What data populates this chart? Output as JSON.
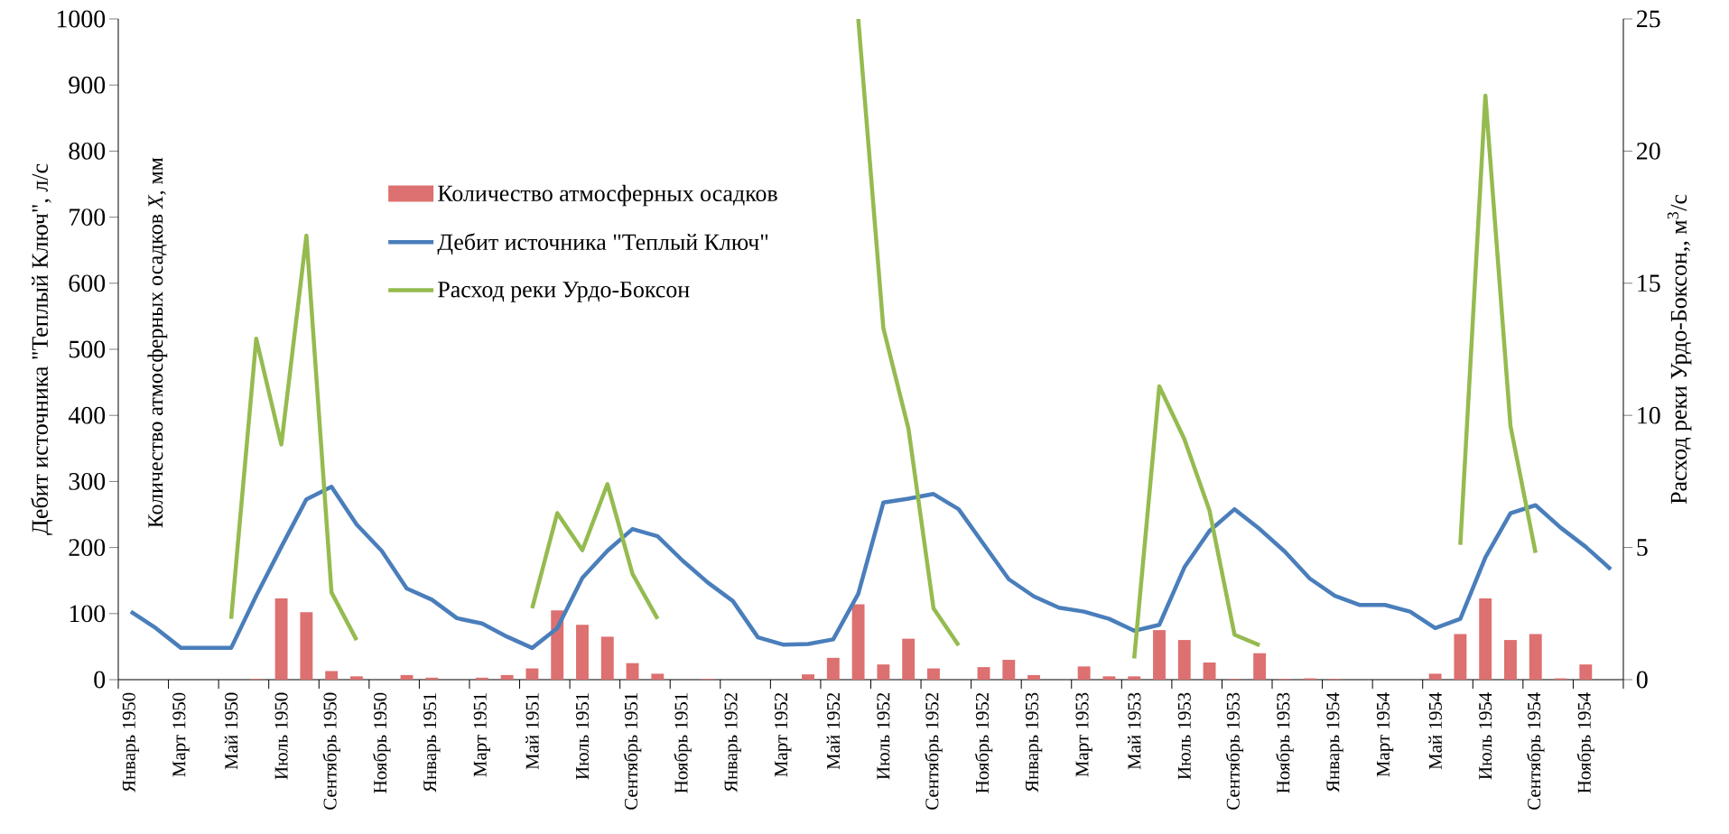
{
  "chart_data": {
    "type": "bar",
    "categories": [
      "Январь 1950",
      null,
      "Март 1950",
      null,
      "Май 1950",
      null,
      "Июль 1950",
      null,
      "Сентябрь 1950",
      null,
      "Ноябрь 1950",
      null,
      "Январь 1951",
      null,
      "Март 1951",
      null,
      "Май 1951",
      null,
      "Июль 1951",
      null,
      "Сентябрь 1951",
      null,
      "Ноябрь 1951",
      null,
      "Январь 1952",
      null,
      "Март 1952",
      null,
      "Май 1952",
      null,
      "Июль 1952",
      null,
      "Сентябрь 1952",
      null,
      "Ноябрь 1952",
      null,
      "Январь 1953",
      null,
      "Март 1953",
      null,
      "Май 1953",
      null,
      "Июль 1953",
      null,
      "Сентябрь 1953",
      null,
      "Ноябрь 1953",
      null,
      "Январь 1954",
      null,
      "Март 1954",
      null,
      "Май 1954",
      null,
      "Июль 1954",
      null,
      "Сентябрь 1954",
      null,
      "Ноябрь 1954",
      null
    ],
    "ylabel": "Дебит источника \"Теплый Ключ\", л/с",
    "y2label": "Расход реки Урдо-Боксон,, м$^{3}$/с",
    "annotations": [
      "Количество атмосферных осадков *X*, мм"
    ],
    "ylim": [
      0,
      1000
    ],
    "yticks": [
      0,
      100,
      200,
      300,
      400,
      500,
      600,
      700,
      800,
      900,
      1000
    ],
    "y2lim": [
      0,
      25
    ],
    "y2ticks": [
      0,
      5,
      10,
      15,
      20,
      25
    ],
    "legend": "top left",
    "marker": "none",
    "line_style": "solid",
    "series": [
      {
        "name": "Количество атмосферных осадков",
        "color": "#dd7070",
        "values": [
          0,
          0,
          0,
          0,
          0,
          1,
          123,
          102,
          13,
          5,
          0,
          7,
          3,
          0,
          3,
          7,
          17,
          105,
          83,
          65,
          25,
          9,
          0,
          1,
          0,
          0,
          0,
          8,
          33,
          114,
          23,
          62,
          17,
          0,
          19,
          30,
          7,
          0,
          20,
          5,
          5,
          75,
          60,
          26,
          1,
          40,
          1,
          2,
          1,
          0,
          0,
          0,
          9,
          69,
          123,
          60,
          69,
          2,
          23,
          0
        ]
      },
      {
        "name": "Дебит источника \"Теплый Ключ\"",
        "type": "line",
        "color": "#4a7ebb",
        "values": [
          103,
          78,
          48,
          48,
          48,
          127,
          201,
          273,
          292,
          235,
          195,
          138,
          121,
          93,
          85,
          65,
          48,
          78,
          154,
          195,
          228,
          217,
          180,
          147,
          119,
          64,
          53,
          54,
          61,
          130,
          268,
          274,
          281,
          258,
          205,
          152,
          126,
          109,
          103,
          92,
          74,
          83,
          170,
          225,
          258,
          228,
          194,
          153,
          127,
          113,
          113,
          103,
          78,
          92,
          185,
          252,
          264,
          230,
          201,
          167
        ]
      },
      {
        "name": "Расход реки Урдо-Боксон",
        "type": "line",
        "axis": "y2",
        "color": "#95bb50",
        "values": [
          null,
          null,
          null,
          null,
          2.3,
          12.9,
          8.9,
          16.8,
          3.3,
          1.5,
          null,
          null,
          null,
          null,
          null,
          null,
          2.7,
          6.3,
          4.9,
          7.4,
          4.0,
          2.3,
          null,
          null,
          null,
          null,
          null,
          null,
          null,
          25,
          13.3,
          9.5,
          2.7,
          1.3,
          null,
          null,
          null,
          null,
          null,
          null,
          0.8,
          11.1,
          9.1,
          6.4,
          1.7,
          1.3,
          null,
          null,
          null,
          null,
          null,
          null,
          null,
          5.1,
          22.1,
          9.6,
          4.8,
          null,
          null,
          null
        ]
      }
    ]
  }
}
